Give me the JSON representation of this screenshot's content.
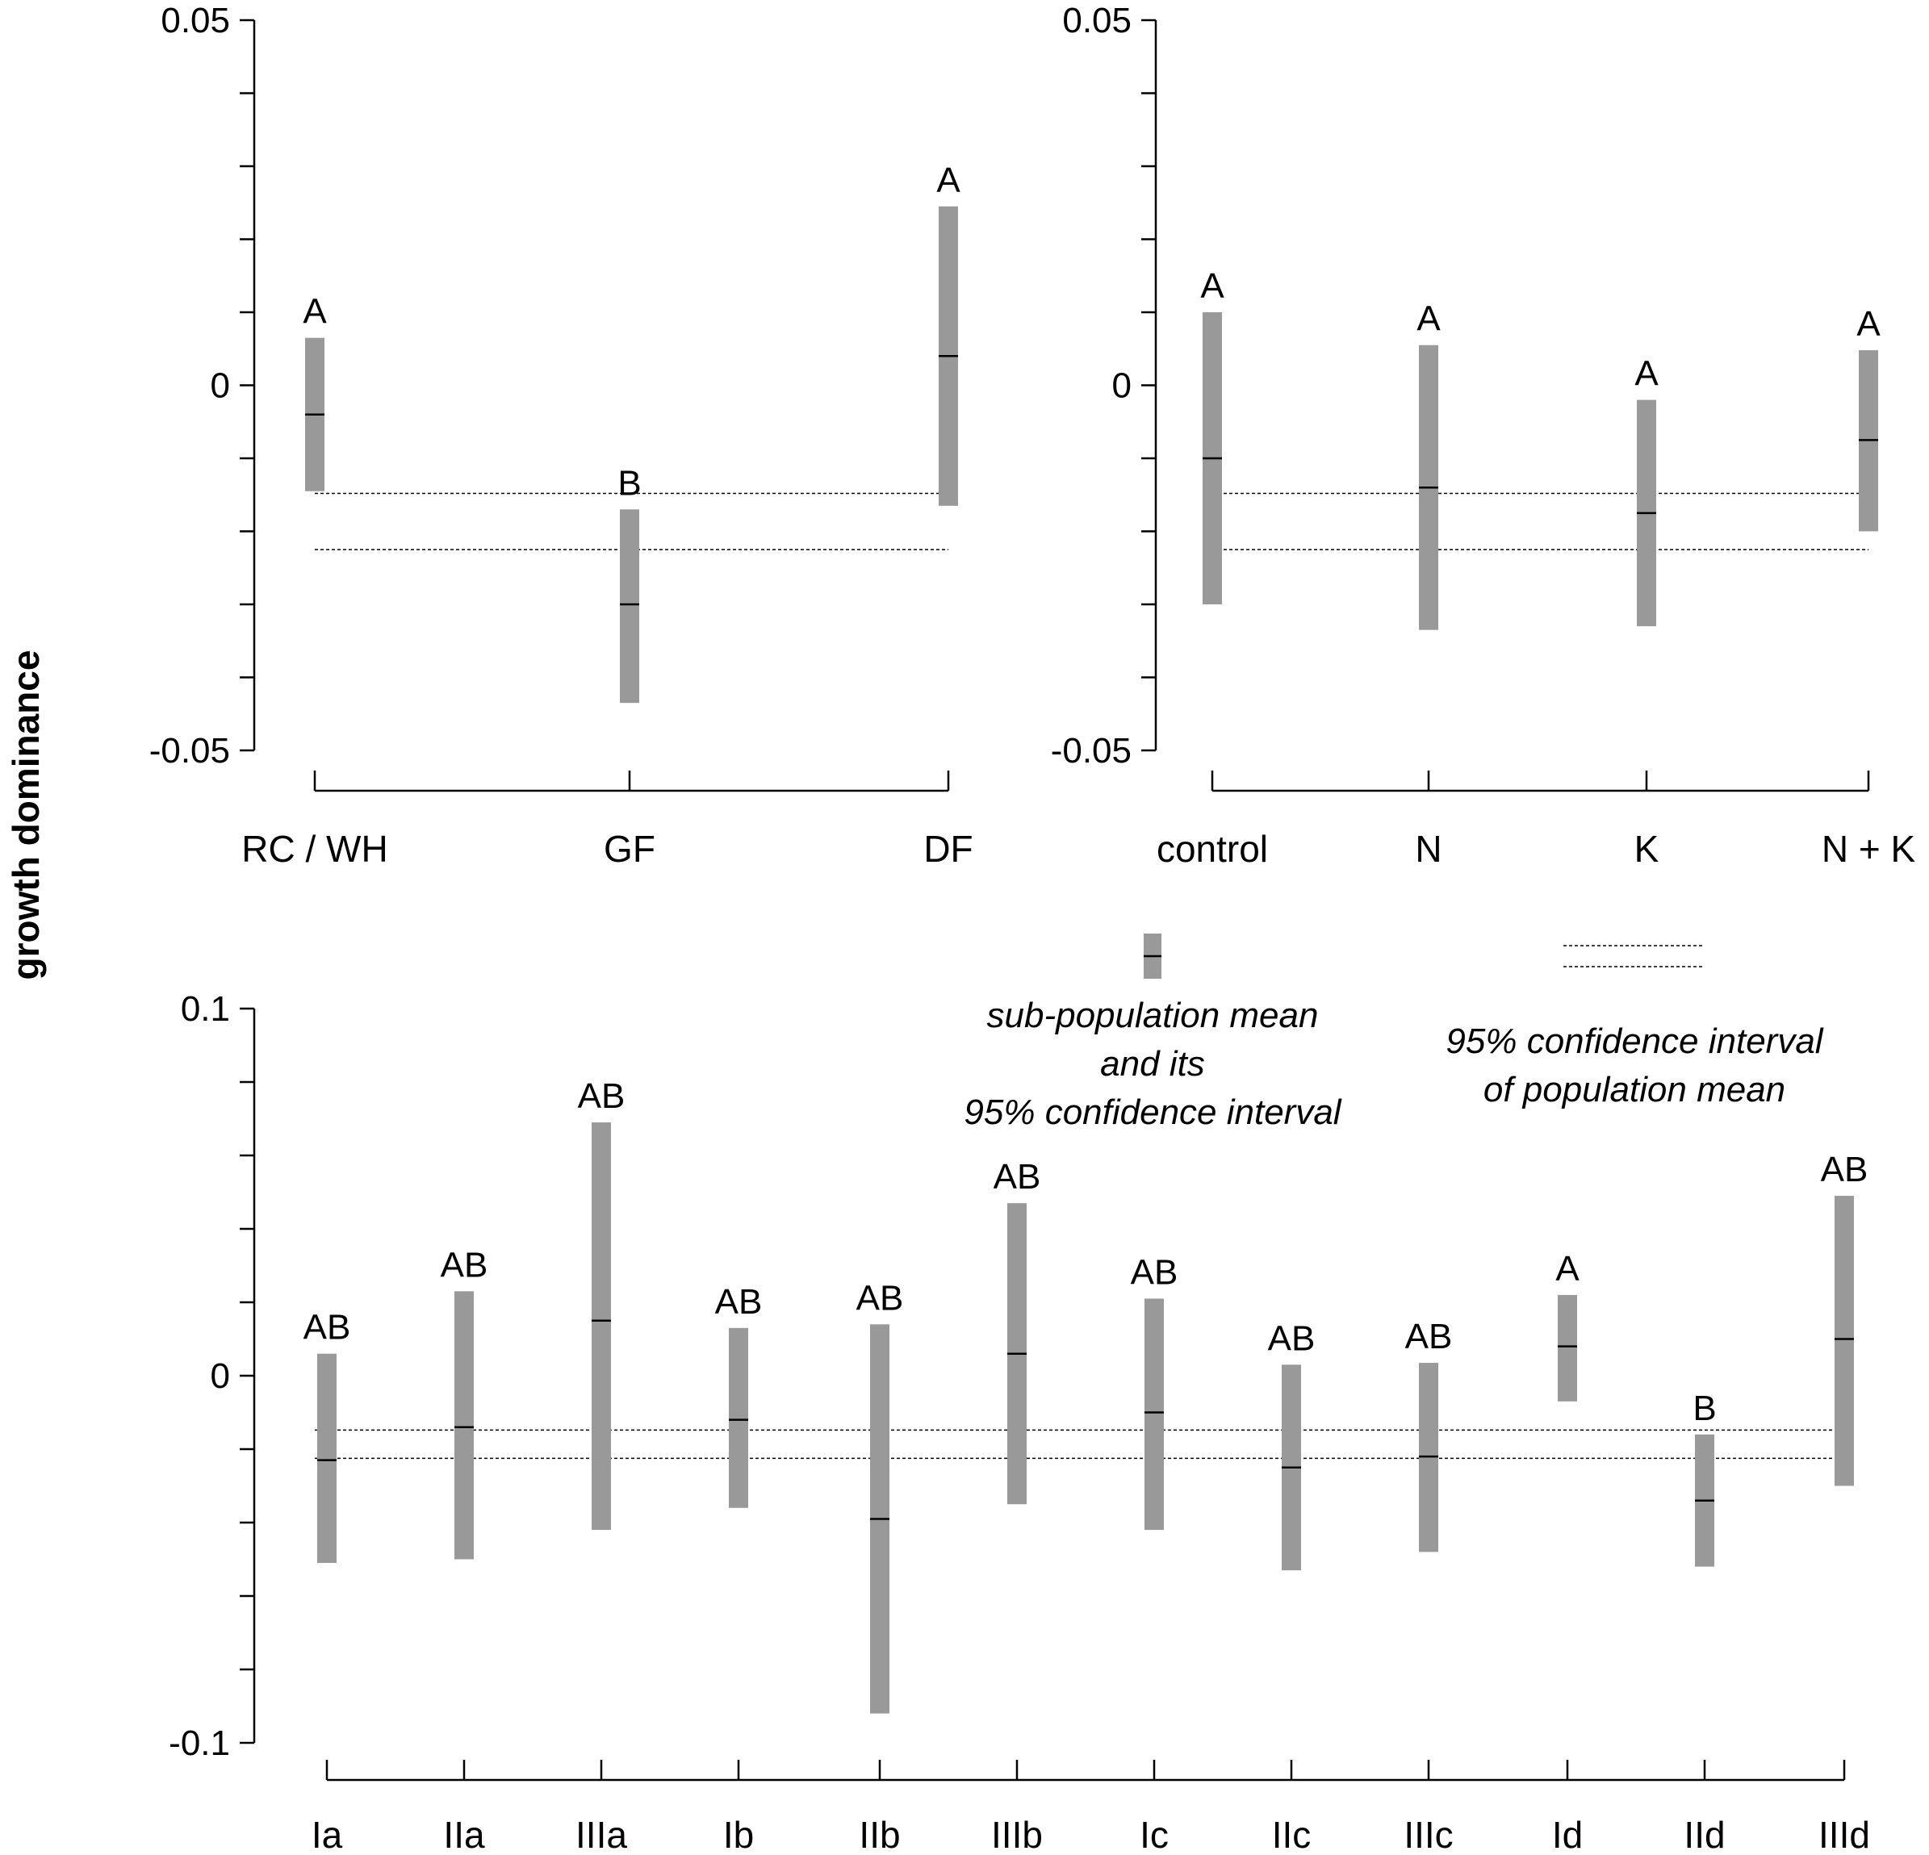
{
  "ylabel": "growth dominance",
  "legend": {
    "sub_population": [
      "sub-population mean",
      "and its",
      "95% confidence interval"
    ],
    "population": [
      "95% confidence interval",
      "of population mean"
    ]
  },
  "colors": {
    "bar": "#999999",
    "line": "#000000"
  },
  "chart_data": [
    {
      "type": "bar",
      "panel": "top-left",
      "categories": [
        "RC / WH",
        "GF",
        "DF"
      ],
      "ylim": [
        -0.05,
        0.05
      ],
      "yticks": [
        -0.05,
        -0.04,
        -0.03,
        -0.02,
        -0.01,
        0,
        0.01,
        0.02,
        0.03,
        0.04,
        0.05
      ],
      "ytick_labels": [
        "-0.05",
        "",
        "",
        "",
        "",
        "0",
        "",
        "",
        "",
        "",
        "0.05"
      ],
      "series": [
        {
          "lower": [
            -0.0145,
            -0.0435,
            -0.0165
          ],
          "mean": [
            -0.004,
            -0.03,
            0.004
          ],
          "upper": [
            0.0065,
            -0.017,
            0.0245
          ]
        }
      ],
      "group_letters": [
        "A",
        "B",
        "A"
      ],
      "population_ci": [
        -0.0225,
        -0.0148
      ]
    },
    {
      "type": "bar",
      "panel": "top-right",
      "categories": [
        "control",
        "N",
        "K",
        "N + K"
      ],
      "ylim": [
        -0.05,
        0.05
      ],
      "yticks": [
        -0.05,
        -0.04,
        -0.03,
        -0.02,
        -0.01,
        0,
        0.01,
        0.02,
        0.03,
        0.04,
        0.05
      ],
      "ytick_labels": [
        "-0.05",
        "",
        "",
        "",
        "",
        "0",
        "",
        "",
        "",
        "",
        "0.05"
      ],
      "series": [
        {
          "lower": [
            -0.03,
            -0.0335,
            -0.033,
            -0.02
          ],
          "mean": [
            -0.01,
            -0.014,
            -0.0175,
            -0.0075
          ],
          "upper": [
            0.01,
            0.0055,
            -0.002,
            0.0048
          ]
        }
      ],
      "group_letters": [
        "A",
        "A",
        "A",
        "A"
      ],
      "population_ci": [
        -0.0225,
        -0.0148
      ]
    },
    {
      "type": "bar",
      "panel": "bottom",
      "categories": [
        "Ia",
        "IIa",
        "IIIa",
        "Ib",
        "IIb",
        "IIIb",
        "Ic",
        "IIc",
        "IIIc",
        "Id",
        "IId",
        "IIId"
      ],
      "ylim": [
        -0.1,
        0.1
      ],
      "yticks": [
        -0.1,
        -0.08,
        -0.06,
        -0.04,
        -0.02,
        0,
        0.02,
        0.04,
        0.06,
        0.08,
        0.1
      ],
      "ytick_labels": [
        "-0.1",
        "",
        "",
        "",
        "",
        "0",
        "",
        "",
        "",
        "",
        "0.1"
      ],
      "series": [
        {
          "lower": [
            -0.051,
            -0.05,
            -0.042,
            -0.036,
            -0.092,
            -0.035,
            -0.042,
            -0.053,
            -0.048,
            -0.007,
            -0.052,
            -0.03
          ],
          "mean": [
            -0.023,
            -0.014,
            0.015,
            -0.012,
            -0.039,
            0.006,
            -0.01,
            -0.025,
            -0.022,
            0.008,
            -0.034,
            0.01
          ],
          "upper": [
            0.006,
            0.023,
            0.069,
            0.013,
            0.014,
            0.047,
            0.021,
            0.003,
            0.0035,
            0.022,
            -0.016,
            0.049
          ]
        }
      ],
      "group_letters": [
        "AB",
        "AB",
        "AB",
        "AB",
        "AB",
        "AB",
        "AB",
        "AB",
        "AB",
        "A",
        "B",
        "AB"
      ],
      "population_ci": [
        -0.0225,
        -0.0148
      ]
    }
  ]
}
